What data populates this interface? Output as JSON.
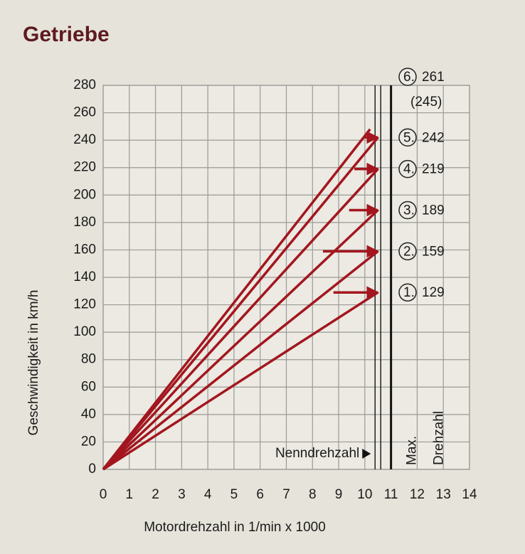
{
  "chart_data": {
    "type": "line",
    "title": "Getriebe",
    "x_label": "Motordrehzahl in 1/min x 1000",
    "y_label": "Geschwindigkeit in km/h",
    "xlim": [
      0,
      14
    ],
    "ylim": [
      0,
      280
    ],
    "xticks": [
      0,
      1,
      2,
      3,
      4,
      5,
      6,
      7,
      8,
      9,
      10,
      11,
      12,
      13,
      14
    ],
    "yticks": [
      0,
      20,
      40,
      60,
      80,
      100,
      120,
      140,
      160,
      180,
      200,
      220,
      240,
      260,
      280
    ],
    "grid": true,
    "series": [
      {
        "color": "#a3161f",
        "x": [
          0,
          10.5
        ],
        "values": [
          0,
          129
        ]
      },
      {
        "color": "#a3161f",
        "x": [
          0,
          10.5
        ],
        "values": [
          0,
          159
        ]
      },
      {
        "color": "#a3161f",
        "x": [
          0,
          10.5
        ],
        "values": [
          0,
          189
        ]
      },
      {
        "color": "#a3161f",
        "x": [
          0,
          10.5
        ],
        "values": [
          0,
          219
        ]
      },
      {
        "color": "#a3161f",
        "x": [
          0,
          10.5
        ],
        "values": [
          0,
          242
        ]
      },
      {
        "color": "#a3161f",
        "x": [
          0,
          10.2
        ],
        "values": [
          0,
          248
        ]
      },
      {
        "color": "#a3161f",
        "x": [
          8.8,
          10.5
        ],
        "values": [
          129,
          129
        ]
      },
      {
        "color": "#a3161f",
        "x": [
          8.4,
          10.5
        ],
        "values": [
          159,
          159
        ]
      },
      {
        "color": "#a3161f",
        "x": [
          9.4,
          10.5
        ],
        "values": [
          189,
          189
        ]
      },
      {
        "color": "#a3161f",
        "x": [
          9.6,
          10.5
        ],
        "values": [
          219,
          219
        ]
      },
      {
        "color": "#a3161f",
        "x": [
          10.0,
          10.5
        ],
        "values": [
          242,
          242
        ]
      }
    ],
    "gear_labels": [
      {
        "gear": "1.",
        "speed": 129
      },
      {
        "gear": "2.",
        "speed": 159
      },
      {
        "gear": "3.",
        "speed": 189
      },
      {
        "gear": "4.",
        "speed": 219
      },
      {
        "gear": "5.",
        "speed": 242
      },
      {
        "gear": "6.",
        "speed": 261,
        "note": "(245)"
      }
    ],
    "vlines": [
      {
        "x": 10.5,
        "label": [
          "Nenndrehzahl"
        ]
      },
      {
        "x": 11,
        "label": [
          "Max.",
          "Drehzahl"
        ]
      }
    ]
  }
}
